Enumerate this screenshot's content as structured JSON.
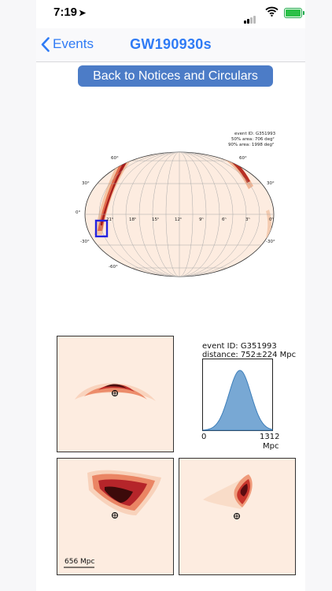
{
  "status_bar": {
    "time": "7:19"
  },
  "nav": {
    "back_label": "Events",
    "title": "GW190930s"
  },
  "notices_button": {
    "label": "Back to Notices and Circulars"
  },
  "skymap": {
    "event_line": "event ID: G351993",
    "area50": "50% area: 706 deg²",
    "area90": "90% area: 1998 deg²",
    "lat_labels": {
      "p60": "60°",
      "p30": "30°",
      "zero": "0°",
      "m30": "-30°",
      "m60": "-60°"
    },
    "ra_labels": [
      "21ʰ",
      "18ʰ",
      "15ʰ",
      "12ʰ",
      "9ʰ",
      "6ʰ",
      "3ʰ",
      "0ʰ"
    ]
  },
  "distance": {
    "event_line": "event ID: G351993",
    "distance_line": "distance: 752±224 Mpc",
    "x_min": "0",
    "x_max": "1312",
    "unit": "Mpc"
  },
  "scale_bar": {
    "label": "656 Mpc"
  },
  "colors": {
    "accent": "#2f7bf5",
    "button": "#4c7cc7",
    "map_bg": "#fdece0"
  }
}
